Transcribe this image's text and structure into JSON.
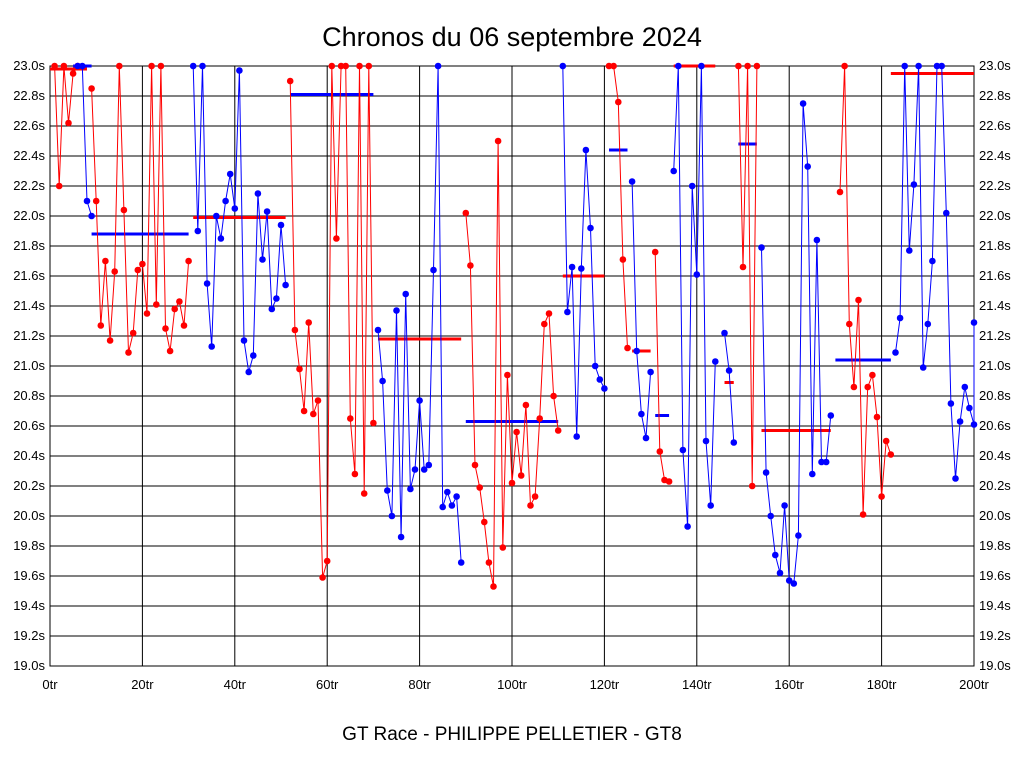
{
  "chart_data": {
    "type": "line",
    "title": "Chronos du 06 septembre 2024",
    "footer": "GT Race - PHILIPPE PELLETIER - GT8",
    "xlim": [
      0,
      200
    ],
    "ylim": [
      19.0,
      23.0
    ],
    "grid": true,
    "x_ticks": [
      0,
      20,
      40,
      60,
      80,
      100,
      120,
      140,
      160,
      180,
      200
    ],
    "x_tick_labels": [
      "0tr",
      "20tr",
      "40tr",
      "60tr",
      "80tr",
      "100tr",
      "120tr",
      "140tr",
      "160tr",
      "180tr",
      "200tr"
    ],
    "y_ticks": [
      19.0,
      19.2,
      19.4,
      19.6,
      19.8,
      20.0,
      20.2,
      20.4,
      20.6,
      20.8,
      21.0,
      21.2,
      21.4,
      21.6,
      21.8,
      22.0,
      22.2,
      22.4,
      22.6,
      22.8,
      23.0
    ],
    "y_tick_labels": [
      "19.0s",
      "19.2s",
      "19.4s",
      "19.6s",
      "19.8s",
      "20.0s",
      "20.2s",
      "20.4s",
      "20.6s",
      "20.8s",
      "21.0s",
      "21.2s",
      "21.4s",
      "21.6s",
      "21.8s",
      "22.0s",
      "22.2s",
      "22.4s",
      "22.6s",
      "22.8s",
      "23.0s"
    ],
    "colors": {
      "red": "#ff0000",
      "blue": "#0000ff",
      "grid": "#000000"
    },
    "segments": [
      {
        "color": "red",
        "points": [
          [
            1,
            23.0
          ],
          [
            2,
            22.2
          ],
          [
            3,
            23.0
          ],
          [
            4,
            22.62
          ],
          [
            5,
            22.95
          ],
          [
            6,
            23.0
          ]
        ],
        "avg": 22.98,
        "avg_range": [
          0,
          8
        ]
      },
      {
        "color": "blue",
        "points": [
          [
            6,
            23.0
          ],
          [
            7,
            23.0
          ],
          [
            8,
            22.1
          ],
          [
            9,
            22.0
          ]
        ],
        "avg": 23.0,
        "avg_range": [
          5,
          9
        ]
      },
      {
        "color": "red",
        "points": [
          [
            9,
            22.85
          ],
          [
            10,
            22.1
          ],
          [
            11,
            21.27
          ],
          [
            12,
            21.7
          ],
          [
            13,
            21.17
          ],
          [
            14,
            21.63
          ],
          [
            15,
            23.0
          ],
          [
            16,
            22.04
          ],
          [
            17,
            21.09
          ],
          [
            18,
            21.22
          ],
          [
            19,
            21.64
          ],
          [
            20,
            21.68
          ],
          [
            21,
            21.35
          ],
          [
            22,
            23.0
          ],
          [
            23,
            21.41
          ],
          [
            24,
            23.0
          ],
          [
            25,
            21.25
          ],
          [
            26,
            21.1
          ],
          [
            27,
            21.38
          ],
          [
            28,
            21.43
          ],
          [
            29,
            21.27
          ],
          [
            30,
            21.7
          ]
        ]
      },
      {
        "color": "blue",
        "points": [],
        "avg": 21.88,
        "avg_range": [
          9,
          30
        ]
      },
      {
        "color": "blue",
        "points": [
          [
            31,
            23.0
          ],
          [
            32,
            21.9
          ],
          [
            33,
            23.0
          ],
          [
            34,
            21.55
          ],
          [
            35,
            21.13
          ],
          [
            36,
            22.0
          ],
          [
            37,
            21.85
          ],
          [
            38,
            22.1
          ],
          [
            39,
            22.28
          ],
          [
            40,
            22.05
          ],
          [
            41,
            22.97
          ],
          [
            42,
            21.17
          ],
          [
            43,
            20.96
          ],
          [
            44,
            21.07
          ],
          [
            45,
            22.15
          ],
          [
            46,
            21.71
          ],
          [
            47,
            22.03
          ],
          [
            48,
            21.38
          ],
          [
            49,
            21.45
          ],
          [
            50,
            21.94
          ],
          [
            51,
            21.54
          ]
        ]
      },
      {
        "color": "red",
        "points": [],
        "avg": 21.99,
        "avg_range": [
          31,
          51
        ]
      },
      {
        "color": "red",
        "points": [
          [
            52,
            22.9
          ],
          [
            53,
            21.24
          ],
          [
            54,
            20.98
          ],
          [
            55,
            20.7
          ],
          [
            56,
            21.29
          ],
          [
            57,
            20.68
          ],
          [
            58,
            20.77
          ],
          [
            59,
            19.59
          ],
          [
            60,
            19.7
          ],
          [
            61,
            23.0
          ],
          [
            62,
            21.85
          ],
          [
            63,
            23.0
          ],
          [
            64,
            23.0
          ],
          [
            65,
            20.65
          ],
          [
            66,
            20.28
          ],
          [
            67,
            23.0
          ],
          [
            68,
            20.15
          ],
          [
            69,
            23.0
          ],
          [
            70,
            20.62
          ]
        ]
      },
      {
        "color": "blue",
        "points": [],
        "avg": 22.81,
        "avg_range": [
          52,
          70
        ]
      },
      {
        "color": "blue",
        "points": [
          [
            71,
            21.24
          ],
          [
            72,
            20.9
          ],
          [
            73,
            20.17
          ],
          [
            74,
            20.0
          ],
          [
            75,
            21.37
          ],
          [
            76,
            19.86
          ],
          [
            77,
            21.48
          ],
          [
            78,
            20.18
          ],
          [
            79,
            20.31
          ],
          [
            80,
            20.77
          ],
          [
            81,
            20.31
          ],
          [
            82,
            20.34
          ],
          [
            83,
            21.64
          ],
          [
            84,
            23.0
          ],
          [
            85,
            20.06
          ],
          [
            86,
            20.16
          ],
          [
            87,
            20.07
          ],
          [
            88,
            20.13
          ],
          [
            89,
            19.69
          ]
        ]
      },
      {
        "color": "red",
        "points": [],
        "avg": 21.18,
        "avg_range": [
          71,
          89
        ]
      },
      {
        "color": "red",
        "points": [
          [
            90,
            22.02
          ],
          [
            91,
            21.67
          ],
          [
            92,
            20.34
          ],
          [
            93,
            20.19
          ],
          [
            94,
            19.96
          ],
          [
            95,
            19.69
          ],
          [
            96,
            19.53
          ],
          [
            97,
            22.5
          ],
          [
            98,
            19.79
          ],
          [
            99,
            20.94
          ],
          [
            100,
            20.22
          ],
          [
            101,
            20.56
          ],
          [
            102,
            20.27
          ],
          [
            103,
            20.74
          ],
          [
            104,
            20.07
          ],
          [
            105,
            20.13
          ],
          [
            106,
            20.65
          ],
          [
            107,
            21.28
          ],
          [
            108,
            21.35
          ],
          [
            109,
            20.8
          ],
          [
            110,
            20.57
          ]
        ]
      },
      {
        "color": "blue",
        "points": [],
        "avg": 20.63,
        "avg_range": [
          90,
          110
        ]
      },
      {
        "color": "blue",
        "points": [
          [
            111,
            23.0
          ],
          [
            112,
            21.36
          ],
          [
            113,
            21.66
          ],
          [
            114,
            20.53
          ],
          [
            115,
            21.65
          ],
          [
            116,
            22.44
          ],
          [
            117,
            21.92
          ],
          [
            118,
            21.0
          ],
          [
            119,
            20.91
          ],
          [
            120,
            20.85
          ]
        ]
      },
      {
        "color": "red",
        "points": [],
        "avg": 21.6,
        "avg_range": [
          111,
          120
        ]
      },
      {
        "color": "red",
        "points": [
          [
            121,
            23.0
          ],
          [
            122,
            23.0
          ],
          [
            123,
            22.76
          ],
          [
            124,
            21.71
          ],
          [
            125,
            21.12
          ]
        ]
      },
      {
        "color": "blue",
        "points": [],
        "avg": 22.44,
        "avg_range": [
          121,
          125
        ]
      },
      {
        "color": "blue",
        "points": [
          [
            126,
            22.23
          ],
          [
            127,
            21.1
          ],
          [
            128,
            20.68
          ],
          [
            129,
            20.52
          ],
          [
            130,
            20.96
          ]
        ]
      },
      {
        "color": "red",
        "points": [],
        "avg": 21.1,
        "avg_range": [
          126,
          130
        ]
      },
      {
        "color": "red",
        "points": [
          [
            131,
            21.76
          ],
          [
            132,
            20.43
          ],
          [
            133,
            20.24
          ],
          [
            134,
            20.23
          ]
        ]
      },
      {
        "color": "blue",
        "points": [],
        "avg": 20.67,
        "avg_range": [
          131,
          134
        ]
      },
      {
        "color": "blue",
        "points": [
          [
            135,
            22.3
          ],
          [
            136,
            23.0
          ],
          [
            137,
            20.44
          ],
          [
            138,
            19.93
          ],
          [
            139,
            22.2
          ],
          [
            140,
            21.61
          ],
          [
            141,
            23.0
          ],
          [
            142,
            20.5
          ],
          [
            143,
            20.07
          ],
          [
            144,
            21.03
          ]
        ]
      },
      {
        "color": "red",
        "points": [],
        "avg": 23.0,
        "avg_range": [
          135,
          144
        ]
      },
      {
        "color": "blue",
        "points": [
          [
            146,
            21.22
          ],
          [
            147,
            20.97
          ],
          [
            148,
            20.49
          ]
        ]
      },
      {
        "color": "red",
        "points": [],
        "avg": 20.89,
        "avg_range": [
          146,
          148
        ]
      },
      {
        "color": "red",
        "points": [
          [
            149,
            23.0
          ],
          [
            150,
            21.66
          ],
          [
            151,
            23.0
          ],
          [
            152,
            20.2
          ],
          [
            153,
            23.0
          ]
        ]
      },
      {
        "color": "blue",
        "points": [],
        "avg": 22.48,
        "avg_range": [
          149,
          153
        ]
      },
      {
        "color": "blue",
        "points": [
          [
            154,
            21.79
          ],
          [
            155,
            20.29
          ],
          [
            156,
            20.0
          ],
          [
            157,
            19.74
          ],
          [
            158,
            19.62
          ],
          [
            159,
            20.07
          ],
          [
            160,
            19.57
          ],
          [
            161,
            19.55
          ],
          [
            162,
            19.87
          ],
          [
            163,
            22.75
          ],
          [
            164,
            22.33
          ],
          [
            165,
            20.28
          ],
          [
            166,
            21.84
          ],
          [
            167,
            20.36
          ],
          [
            168,
            20.36
          ],
          [
            169,
            20.67
          ]
        ]
      },
      {
        "color": "red",
        "points": [],
        "avg": 20.57,
        "avg_range": [
          154,
          169
        ]
      },
      {
        "color": "red",
        "points": [
          [
            171,
            22.16
          ],
          [
            172,
            23.0
          ],
          [
            173,
            21.28
          ],
          [
            174,
            20.86
          ],
          [
            175,
            21.44
          ],
          [
            176,
            20.01
          ],
          [
            177,
            20.86
          ],
          [
            178,
            20.94
          ],
          [
            179,
            20.66
          ],
          [
            180,
            20.13
          ],
          [
            181,
            20.5
          ],
          [
            182,
            20.41
          ]
        ]
      },
      {
        "color": "blue",
        "points": [],
        "avg": 21.04,
        "avg_range": [
          170,
          182
        ]
      },
      {
        "color": "blue",
        "points": [
          [
            183,
            21.09
          ],
          [
            184,
            21.32
          ],
          [
            185,
            23.0
          ],
          [
            186,
            21.77
          ],
          [
            187,
            22.21
          ],
          [
            188,
            23.0
          ],
          [
            189,
            20.99
          ],
          [
            190,
            21.28
          ],
          [
            191,
            21.7
          ],
          [
            192,
            23.0
          ],
          [
            193,
            23.0
          ],
          [
            194,
            22.02
          ],
          [
            195,
            20.75
          ],
          [
            196,
            20.25
          ],
          [
            197,
            20.63
          ],
          [
            198,
            20.86
          ],
          [
            199,
            20.72
          ],
          [
            200,
            20.61
          ],
          [
            201,
            21.29
          ]
        ]
      },
      {
        "color": "red",
        "points": [],
        "avg": 22.95,
        "avg_range": [
          182,
          201
        ]
      }
    ]
  }
}
